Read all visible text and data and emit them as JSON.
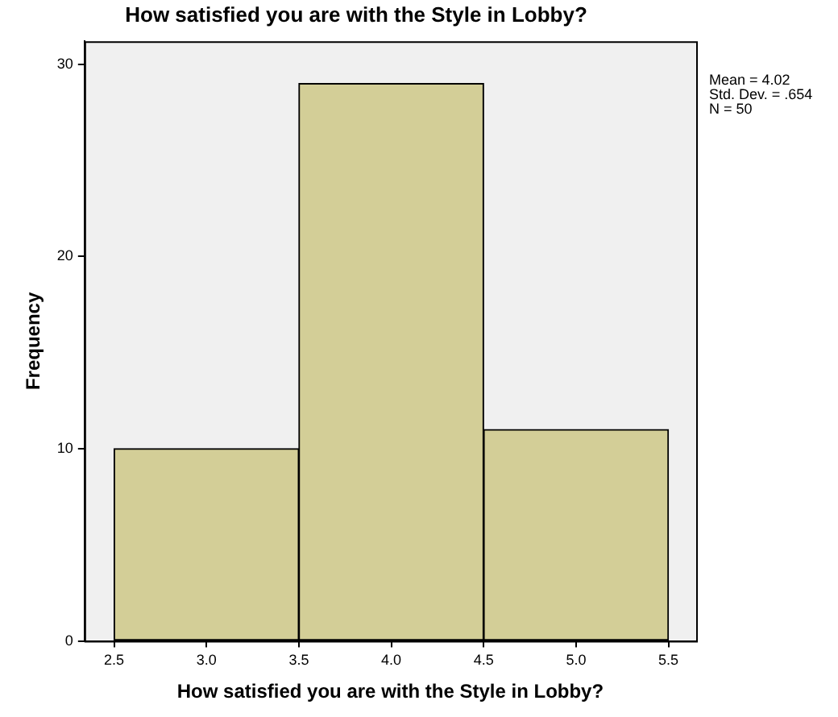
{
  "chart_data": {
    "type": "histogram",
    "title": "How satisfied you are with the Style in Lobby?",
    "xlabel": "How satisfied you are with the Style in Lobby?",
    "ylabel": "Frequency",
    "bins": [
      2.5,
      3.5,
      4.5,
      5.5
    ],
    "values": [
      10,
      29,
      11
    ],
    "color": "#d3ce97",
    "xlim": [
      2.34,
      5.65
    ],
    "xticks": [
      2.5,
      {
        "value": 3,
        "label": "3.0"
      },
      3.5,
      {
        "value": 4,
        "label": "4.0"
      },
      4.5,
      {
        "value": 5,
        "label": "5.0"
      },
      5.5
    ],
    "ylim": [
      0,
      31.2
    ],
    "yticks": [
      0,
      10,
      20,
      30
    ],
    "grid": false,
    "legend": false,
    "annotations": [
      "Mean = 4.02",
      "Std. Dev. = .654",
      "N = 50"
    ]
  }
}
